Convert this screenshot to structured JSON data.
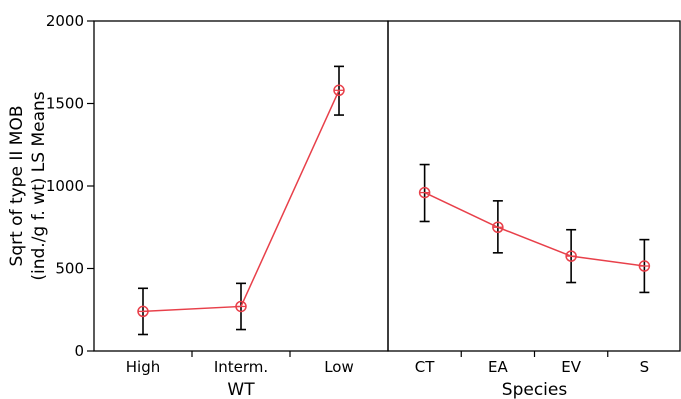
{
  "chart_data": {
    "type": "line",
    "ylabel": "Sqrt of type II MOB",
    "ylabel2": "(ind./g f. wt) LS Means",
    "ylim": [
      0,
      2000
    ],
    "yticks": [
      0,
      500,
      1000,
      1500,
      2000
    ],
    "grid": false,
    "line_color": "#e8404a",
    "panels": [
      {
        "xlabel": "WT",
        "categories": [
          "High",
          "Interm.",
          "Low"
        ],
        "values": [
          240,
          270,
          1580
        ],
        "lower": [
          100,
          130,
          1430
        ],
        "upper": [
          380,
          410,
          1725
        ]
      },
      {
        "xlabel": "Species",
        "categories": [
          "CT",
          "EA",
          "EV",
          "S"
        ],
        "values": [
          960,
          750,
          575,
          515
        ],
        "lower": [
          785,
          595,
          415,
          355
        ],
        "upper": [
          1130,
          910,
          735,
          675
        ]
      }
    ]
  }
}
